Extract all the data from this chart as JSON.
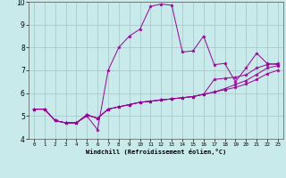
{
  "xlabel": "Windchill (Refroidissement éolien,°C)",
  "ylabel": "",
  "background_color": "#c8eaea",
  "grid_color": "#aacaca",
  "line_color": "#990099",
  "xlim": [
    -0.5,
    23.5
  ],
  "ylim": [
    4,
    10
  ],
  "xticks": [
    0,
    1,
    2,
    3,
    4,
    5,
    6,
    7,
    8,
    9,
    10,
    11,
    12,
    13,
    14,
    15,
    16,
    17,
    18,
    19,
    20,
    21,
    22,
    23
  ],
  "yticks": [
    4,
    5,
    6,
    7,
    8,
    9,
    10
  ],
  "series": [
    [
      5.3,
      5.3,
      4.8,
      4.7,
      4.7,
      5.0,
      4.4,
      7.0,
      8.0,
      8.5,
      8.8,
      9.8,
      9.9,
      9.85,
      7.8,
      7.85,
      8.5,
      7.25,
      7.3,
      6.5,
      7.1,
      7.75,
      7.3,
      7.25
    ],
    [
      5.3,
      5.3,
      4.8,
      4.7,
      4.7,
      5.05,
      4.9,
      5.3,
      5.4,
      5.5,
      5.6,
      5.65,
      5.7,
      5.75,
      5.8,
      5.85,
      5.95,
      6.6,
      6.65,
      6.7,
      6.8,
      7.1,
      7.25,
      7.3
    ],
    [
      5.3,
      5.3,
      4.8,
      4.7,
      4.7,
      5.05,
      4.9,
      5.3,
      5.4,
      5.5,
      5.6,
      5.65,
      5.7,
      5.75,
      5.8,
      5.85,
      5.95,
      6.05,
      6.2,
      6.38,
      6.55,
      6.82,
      7.1,
      7.2
    ],
    [
      5.3,
      5.3,
      4.8,
      4.7,
      4.7,
      5.05,
      4.9,
      5.3,
      5.4,
      5.5,
      5.6,
      5.65,
      5.7,
      5.75,
      5.8,
      5.85,
      5.95,
      6.05,
      6.15,
      6.25,
      6.4,
      6.6,
      6.85,
      7.0
    ]
  ]
}
